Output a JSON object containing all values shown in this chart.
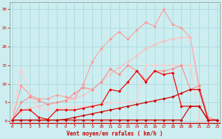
{
  "xlabel": "Vent moyen/en rafales ( km/h )",
  "bg_color": "#cceef0",
  "grid_color": "#aad8dc",
  "x_ticks": [
    0,
    1,
    2,
    3,
    4,
    5,
    6,
    7,
    8,
    9,
    10,
    11,
    12,
    13,
    14,
    15,
    16,
    17,
    18,
    19,
    20,
    21,
    22,
    23
  ],
  "y_ticks": [
    0,
    5,
    10,
    15,
    20,
    25,
    30
  ],
  "ylim": [
    -0.5,
    32
  ],
  "xlim": [
    -0.3,
    23.3
  ],
  "series": [
    {
      "name": "upper_pink_jagged",
      "color": "#ff9999",
      "linewidth": 0.8,
      "marker": "D",
      "markersize": 2.0,
      "zorder": 2,
      "x": [
        0,
        1,
        2,
        3,
        4,
        5,
        6,
        7,
        8,
        9,
        10,
        11,
        12,
        13,
        14,
        15,
        16,
        17,
        18,
        19,
        20,
        21,
        22,
        23
      ],
      "y": [
        0.3,
        9.5,
        7.0,
        6.0,
        6.0,
        7.0,
        6.5,
        6.0,
        10.0,
        16.0,
        19.5,
        22.0,
        24.0,
        22.0,
        24.5,
        26.5,
        25.5,
        30.0,
        26.0,
        25.0,
        22.5,
        9.5,
        1.0,
        0.3
      ]
    },
    {
      "name": "upper_diagonal_light",
      "color": "#ffbbbb",
      "linewidth": 0.8,
      "marker": "D",
      "markersize": 2.0,
      "zorder": 2,
      "x": [
        0,
        1,
        2,
        3,
        4,
        5,
        6,
        7,
        8,
        9,
        10,
        11,
        12,
        13,
        14,
        15,
        16,
        17,
        18,
        19,
        20,
        21,
        22,
        23
      ],
      "y": [
        0.3,
        2.5,
        3.5,
        4.0,
        4.5,
        5.0,
        5.5,
        6.0,
        7.0,
        8.5,
        10.5,
        12.5,
        14.5,
        16.0,
        17.5,
        19.5,
        20.5,
        21.5,
        22.0,
        22.5,
        22.5,
        8.0,
        1.0,
        0.3
      ]
    },
    {
      "name": "flat_pink_horizontal",
      "color": "#ffcccc",
      "linewidth": 0.8,
      "marker": "D",
      "markersize": 2.0,
      "zorder": 2,
      "x": [
        0,
        1,
        2,
        3,
        4,
        5,
        6,
        7,
        8,
        9,
        10,
        11,
        12,
        13,
        14,
        15,
        16,
        17,
        18,
        19,
        20,
        21,
        22,
        23
      ],
      "y": [
        0.3,
        14.0,
        6.5,
        3.5,
        3.0,
        3.5,
        3.5,
        4.0,
        4.0,
        4.0,
        4.5,
        5.0,
        5.0,
        5.0,
        5.5,
        15.0,
        15.0,
        15.0,
        15.0,
        15.0,
        15.0,
        0.3,
        0.3,
        0.3
      ]
    },
    {
      "name": "medium_pink_wavy",
      "color": "#ff8888",
      "linewidth": 0.8,
      "marker": "D",
      "markersize": 2.0,
      "zorder": 3,
      "x": [
        0,
        1,
        2,
        3,
        4,
        5,
        6,
        7,
        8,
        9,
        10,
        11,
        12,
        13,
        14,
        15,
        16,
        17,
        18,
        19,
        20,
        21,
        22,
        23
      ],
      "y": [
        0.3,
        5.0,
        6.5,
        5.5,
        4.5,
        5.0,
        5.5,
        7.5,
        9.0,
        8.5,
        10.5,
        14.0,
        12.5,
        15.0,
        13.5,
        11.0,
        13.5,
        13.5,
        14.0,
        15.0,
        8.5,
        9.5,
        1.0,
        0.3
      ]
    },
    {
      "name": "dark_red_diagonal",
      "color": "#cc0000",
      "linewidth": 0.9,
      "marker": "D",
      "markersize": 2.0,
      "zorder": 4,
      "x": [
        0,
        1,
        2,
        3,
        4,
        5,
        6,
        7,
        8,
        9,
        10,
        11,
        12,
        13,
        14,
        15,
        16,
        17,
        18,
        19,
        20,
        21,
        22,
        23
      ],
      "y": [
        0.3,
        0.3,
        0.3,
        0.3,
        0.3,
        0.3,
        0.5,
        1.0,
        1.5,
        2.0,
        2.5,
        3.0,
        3.5,
        4.0,
        4.5,
        5.0,
        5.5,
        6.0,
        6.5,
        7.5,
        8.5,
        8.5,
        0.3,
        0.3
      ]
    },
    {
      "name": "dark_red_jagged",
      "color": "#ee0000",
      "linewidth": 0.9,
      "marker": "D",
      "markersize": 2.0,
      "zorder": 4,
      "x": [
        0,
        1,
        2,
        3,
        4,
        5,
        6,
        7,
        8,
        9,
        10,
        11,
        12,
        13,
        14,
        15,
        16,
        17,
        18,
        19,
        20,
        21,
        22,
        23
      ],
      "y": [
        0.3,
        3.0,
        3.0,
        1.0,
        0.5,
        3.0,
        3.0,
        3.0,
        3.5,
        4.0,
        4.5,
        8.5,
        8.0,
        10.5,
        13.5,
        10.5,
        13.5,
        12.5,
        13.0,
        4.0,
        4.0,
        4.0,
        0.3,
        0.3
      ]
    },
    {
      "name": "dark_red_flat_low",
      "color": "#cc0000",
      "linewidth": 0.9,
      "marker": "D",
      "markersize": 2.0,
      "zorder": 4,
      "x": [
        0,
        1,
        2,
        3,
        4,
        5,
        6,
        7,
        8,
        9,
        10,
        11,
        12,
        13,
        14,
        15,
        16,
        17,
        18,
        19,
        20,
        21,
        22,
        23
      ],
      "y": [
        0.3,
        0.3,
        0.3,
        0.3,
        0.3,
        0.3,
        0.3,
        0.3,
        0.3,
        0.3,
        0.3,
        0.3,
        0.3,
        0.3,
        0.3,
        0.3,
        0.3,
        0.3,
        0.3,
        0.3,
        4.0,
        4.0,
        0.3,
        0.3
      ]
    }
  ]
}
